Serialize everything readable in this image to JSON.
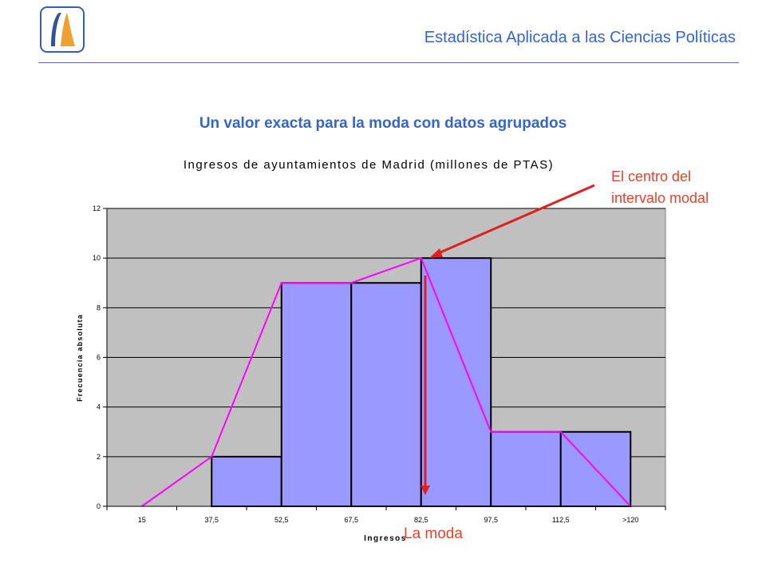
{
  "header": {
    "title": "Estadística Aplicada a las Ciencias Políticas"
  },
  "slide": {
    "subtitle": "Un valor exacta para la moda con datos agrupados"
  },
  "annotations": {
    "center_line1": "El centro del",
    "center_line2": "intervalo modal",
    "mode": "La moda"
  },
  "colors": {
    "accent": "#3366cc",
    "annotation": "#e8432a",
    "bar": "#9999ff",
    "polygon": "#ff00ff",
    "plot_bg": "#c0c0c0"
  },
  "chart_data": {
    "type": "bar",
    "title": "Ingresos de ayuntamientos de Madrid (millones de PTAS)",
    "xlabel": "Ingresos",
    "ylabel": "Frecuencia absoluta",
    "categories": [
      "15",
      "37,5",
      "52,5",
      "67,5",
      "82,5",
      "97,5",
      "112,5",
      ">120"
    ],
    "bars": [
      {
        "from": "37,5",
        "to": "52,5",
        "value": 2
      },
      {
        "from": "52,5",
        "to": "67,5",
        "value": 9
      },
      {
        "from": "67,5",
        "to": "82,5",
        "value": 9
      },
      {
        "from": "82,5",
        "to": "97,5",
        "value": 10
      },
      {
        "from": "97,5",
        "to": "112,5",
        "value": 3
      },
      {
        "from": "112,5",
        "to": ">120",
        "value": 3
      }
    ],
    "frequency_polygon": [
      0,
      2,
      9,
      9,
      10,
      3,
      3,
      0
    ],
    "yticks": [
      0,
      2,
      4,
      6,
      8,
      10,
      12
    ],
    "ylim": [
      0,
      12
    ],
    "grid": true
  }
}
